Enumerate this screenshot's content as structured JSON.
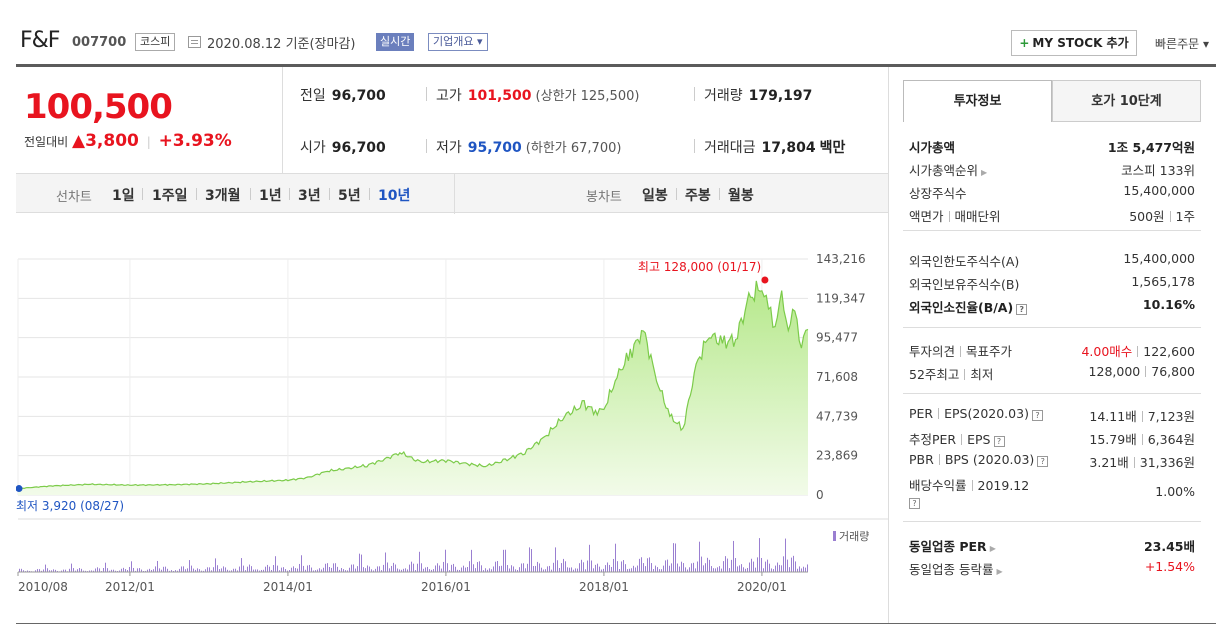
{
  "header": {
    "company_name": "F&F",
    "company_code": "007700",
    "market": "코스피",
    "date": "2020.08.12 기준(장마감)",
    "realtime": "실시간",
    "overview": "기업개요 ▾",
    "mystock_label": "MY STOCK 추가",
    "quick_order": "빠른주문 ▾"
  },
  "price": {
    "current": "100,500",
    "change_label": "전일대비",
    "change_amount": "▲3,800",
    "change_percent": "+3.93%",
    "prev_label": "전일",
    "prev_value": "96,700",
    "high_label": "고가",
    "high_value": "101,500",
    "upper_limit": "(상한가 125,500)",
    "volume_label": "거래량",
    "volume_value": "179,197",
    "open_label": "시가",
    "open_value": "96,700",
    "low_label": "저가",
    "low_value": "95,700",
    "lower_limit": "(하한가 67,700)",
    "amount_label": "거래대금",
    "amount_value": "17,804",
    "amount_unit": "백만"
  },
  "chart_tabs": {
    "line_label": "선차트",
    "line_items": [
      "1일",
      "1주일",
      "3개월",
      "1년",
      "3년",
      "5년",
      "10년"
    ],
    "active_line": "10년",
    "candle_label": "봉차트",
    "candle_items": [
      "일봉",
      "주봉",
      "월봉"
    ]
  },
  "chart_data": {
    "type": "area",
    "y_ticks": [
      "143,216",
      "119,347",
      "95,477",
      "71,608",
      "47,739",
      "23,869",
      "0"
    ],
    "ylim": [
      0,
      143216
    ],
    "x_ticks": [
      "2010/08",
      "2012/01",
      "2014/01",
      "2016/01",
      "2018/01",
      "2020/01"
    ],
    "high_annotation": "최고 128,000 (01/17)",
    "low_annotation": "최저 3,920 (08/27)",
    "volume_legend": "거래량",
    "series": [
      {
        "x": [
          "2010/08",
          "2011/01",
          "2011/07",
          "2012/01",
          "2012/07",
          "2013/01",
          "2013/07",
          "2014/01",
          "2014/04",
          "2014/07",
          "2014/10",
          "2015/01",
          "2015/04",
          "2015/06",
          "2015/09",
          "2016/01",
          "2016/04",
          "2016/07",
          "2016/10",
          "2017/01",
          "2017/04",
          "2017/07",
          "2017/10",
          "2017/12",
          "2018/01",
          "2018/03",
          "2018/05",
          "2018/07",
          "2018/09",
          "2018/11",
          "2019/01",
          "2019/03",
          "2019/05",
          "2019/07",
          "2019/09",
          "2019/11",
          "2020/01",
          "2020/02",
          "2020/03",
          "2020/04",
          "2020/05",
          "2020/06",
          "2020/07",
          "2020/08"
        ],
        "values": [
          3920,
          5500,
          6500,
          6000,
          6200,
          6800,
          8000,
          9000,
          10500,
          14500,
          16000,
          18000,
          22000,
          26000,
          20000,
          21000,
          19000,
          17500,
          21000,
          26000,
          35000,
          48000,
          55000,
          50000,
          52000,
          72000,
          86000,
          100000,
          70000,
          48000,
          40000,
          78000,
          98000,
          92000,
          95000,
          118000,
          128000,
          112000,
          105000,
          118000,
          103000,
          110000,
          93000,
          100500
        ]
      }
    ]
  },
  "right_tabs": {
    "info": "투자정보",
    "quote": "호가 10단계"
  },
  "info": {
    "market_cap_label": "시가총액",
    "market_cap_value": "1조 5,477억원",
    "market_cap_rank_label": "시가총액순위",
    "market_cap_rank_value": "코스피 133위",
    "listed_shares_label": "상장주식수",
    "listed_shares_value": "15,400,000",
    "face_value_label": "액면가",
    "trade_unit_label": "매매단위",
    "face_value_value": "500원",
    "trade_unit_value": "1주",
    "foreign_limit_label": "외국인한도주식수(A)",
    "foreign_limit_value": "15,400,000",
    "foreign_hold_label": "외국인보유주식수(B)",
    "foreign_hold_value": "1,565,178",
    "foreign_ratio_label": "외국인소진율(B/A)",
    "foreign_ratio_value": "10.16%",
    "opinion_label": "투자의견",
    "target_label": "목표주가",
    "opinion_value": "4.00매수",
    "target_value": "122,600",
    "week52_label": "52주최고",
    "week52_low_label": "최저",
    "week52_high_value": "128,000",
    "week52_low_value": "76,800",
    "per_label": "PER",
    "eps_label": "EPS(2020.03)",
    "per_value": "14.11배",
    "eps_value": "7,123원",
    "est_per_label": "추정PER",
    "est_eps_label": "EPS",
    "est_per_value": "15.79배",
    "est_eps_value": "6,364원",
    "pbr_label": "PBR",
    "bps_label": "BPS (2020.03)",
    "pbr_value": "3.21배",
    "bps_value": "31,336원",
    "dividend_label": "배당수익률",
    "dividend_year": "2019.12",
    "dividend_value": "1.00%",
    "sector_per_label": "동일업종 PER",
    "sector_per_value": "23.45배",
    "sector_rate_label": "동일업종 등락률",
    "sector_rate_value": "+1.54%"
  }
}
